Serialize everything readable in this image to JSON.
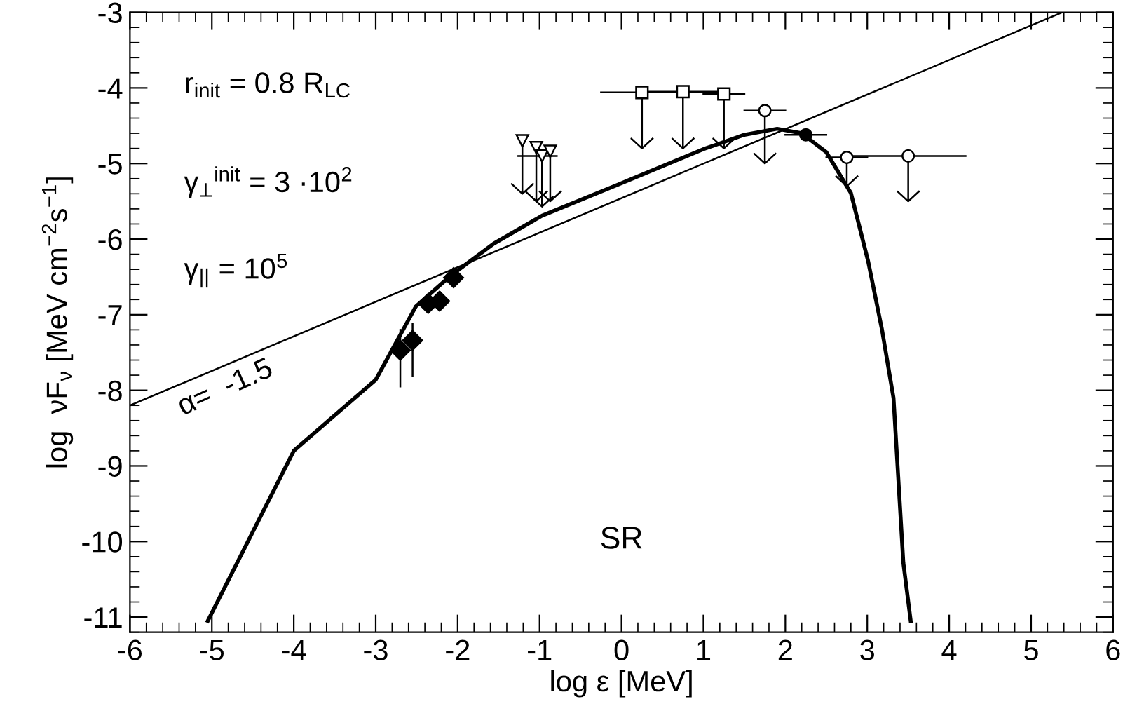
{
  "chart_data": {
    "type": "line",
    "xlabel": "log ε [MeV]",
    "ylabel": "log  νF$_{ν}$ [MeV cm$^{−2}$s$^{−1}$]",
    "xlim": [
      -6,
      6
    ],
    "ylim": [
      -11.2,
      -3
    ],
    "xticks": [
      -6,
      -5,
      -4,
      -3,
      -2,
      -1,
      0,
      1,
      2,
      3,
      4,
      5,
      6
    ],
    "yticks": [
      -11,
      -10,
      -9,
      -8,
      -7,
      -6,
      -5,
      -4,
      -3
    ],
    "grid": false,
    "legend": false,
    "annotations": [
      "r$_{init}$ = 0.8 R$_{LC}$",
      "γ$_{⊥}$$^{init}$ = 3 ·10$^{2}$",
      "γ$_{||}$ = 10$^{5}$",
      "α=  -1.5",
      "SR"
    ],
    "series": [
      {
        "color": "#000000",
        "line_style": "solid",
        "x": [
          -5.05,
          -4.0,
          -3.0,
          -2.51,
          -2.07,
          -1.56,
          -0.97,
          0.0,
          1.0,
          1.5,
          1.9,
          2.2,
          2.5,
          2.8,
          3.01,
          3.18,
          3.32,
          3.44,
          3.53
        ],
        "values": [
          -11.05,
          -8.8,
          -7.86,
          -6.89,
          -6.47,
          -6.06,
          -5.69,
          -5.26,
          -4.81,
          -4.62,
          -4.54,
          -4.6,
          -4.85,
          -5.39,
          -6.29,
          -7.2,
          -8.1,
          -10.28,
          -11.05
        ]
      },
      {
        "color": "#000000",
        "line_style": "solid",
        "x": [
          -6.0,
          5.38
        ],
        "values": [
          -8.2,
          -3.0
        ]
      },
      {
        "type": "scatter",
        "color": "#000000",
        "marker": "diamond",
        "x": [
          -2.7,
          -2.55,
          -2.36,
          -2.22,
          -2.05
        ],
        "values": [
          -7.47,
          -7.34,
          -6.85,
          -6.82,
          -6.51
        ],
        "errors": [
          [
            -7.95,
            -7.2
          ],
          [
            -7.81,
            -7.12
          ],
          null,
          0.12,
          null
        ]
      },
      {
        "type": "scatter",
        "color": "#000000",
        "marker": "triangle",
        "x": [
          -1.21,
          -1.04,
          -0.97,
          -0.87
        ],
        "values": [
          -4.7,
          -4.79,
          -4.9,
          -4.84
        ],
        "errors": [
          [
            -5.4,
            -4.7
          ],
          [
            -5.5,
            -4.79
          ],
          [
            -5.57,
            -4.9
          ],
          [
            -5.5,
            -4.84
          ]
        ],
        "xerrors": [
          null,
          null,
          [
            -1.26,
            -0.79
          ],
          null
        ]
      },
      {
        "type": "scatter",
        "color": "#000000",
        "marker": "square",
        "x": [
          0.25,
          0.75,
          1.25
        ],
        "values": [
          -4.06,
          -4.05,
          -4.08
        ],
        "errors": [
          [
            -4.8,
            -4.06
          ],
          [
            -4.8,
            -4.05
          ],
          [
            -4.8,
            -4.08
          ]
        ],
        "xerrors": [
          [
            -0.25,
            0.75
          ],
          [
            0.25,
            1.25
          ],
          [
            1.0,
            1.5
          ]
        ]
      },
      {
        "type": "scatter",
        "color": "#000000",
        "marker": "circle",
        "x": [
          1.75,
          3.5
        ],
        "values": [
          -4.3,
          -4.9
        ],
        "errors": [
          [
            -5.0,
            -4.3
          ],
          [
            -5.5,
            -4.9
          ]
        ],
        "xerrors": [
          [
            1.5,
            2.0
          ],
          [
            2.8,
            4.2
          ]
        ]
      },
      {
        "type": "scatter",
        "color": "#000000",
        "marker": "circle",
        "x": [
          2.25,
          2.75
        ],
        "values": [
          -4.62,
          -4.92
        ],
        "errors": [
          null,
          [
            -5.3,
            -4.92
          ]
        ],
        "xerrors": [
          [
            2.0,
            2.5
          ],
          [
            2.5,
            3.0
          ]
        ]
      }
    ]
  }
}
